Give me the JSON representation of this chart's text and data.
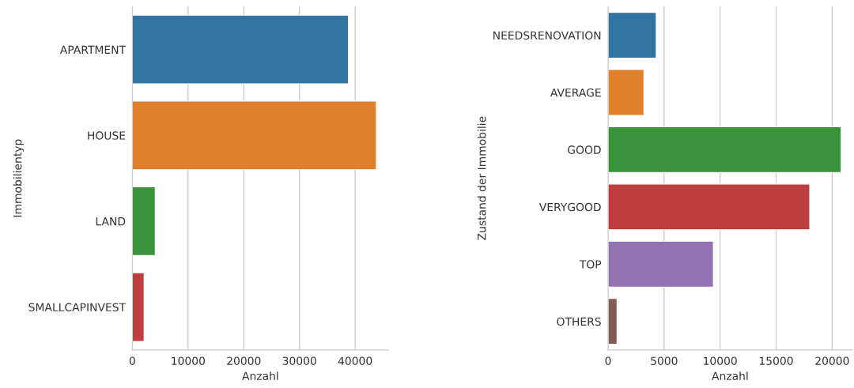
{
  "chart_data": [
    {
      "type": "bar",
      "orientation": "horizontal",
      "xlabel": "Anzahl",
      "ylabel": "Immobilientyp",
      "categories": [
        "APARTMENT",
        "HOUSE",
        "LAND",
        "SMALLCAPINVEST"
      ],
      "values": [
        38800,
        43800,
        4100,
        2100
      ],
      "colors": [
        "#3274a1",
        "#e1812c",
        "#3a923a",
        "#c03d3e"
      ],
      "xlim": [
        0,
        46000
      ],
      "xticks": [
        0,
        10000,
        20000,
        30000,
        40000
      ],
      "grid": "x"
    },
    {
      "type": "bar",
      "orientation": "horizontal",
      "xlabel": "Anzahl",
      "ylabel": "Zustand der Immobilie",
      "categories": [
        "NEEDSRENOVATION",
        "AVERAGE",
        "GOOD",
        "VERYGOOD",
        "TOP",
        "OTHERS"
      ],
      "values": [
        4300,
        3200,
        20800,
        18000,
        9400,
        800
      ],
      "colors": [
        "#3274a1",
        "#e1812c",
        "#3a923a",
        "#c03d3e",
        "#9372b2",
        "#845b53"
      ],
      "xlim": [
        0,
        21800
      ],
      "xticks": [
        0,
        5000,
        10000,
        15000,
        20000
      ],
      "grid": "x"
    }
  ]
}
